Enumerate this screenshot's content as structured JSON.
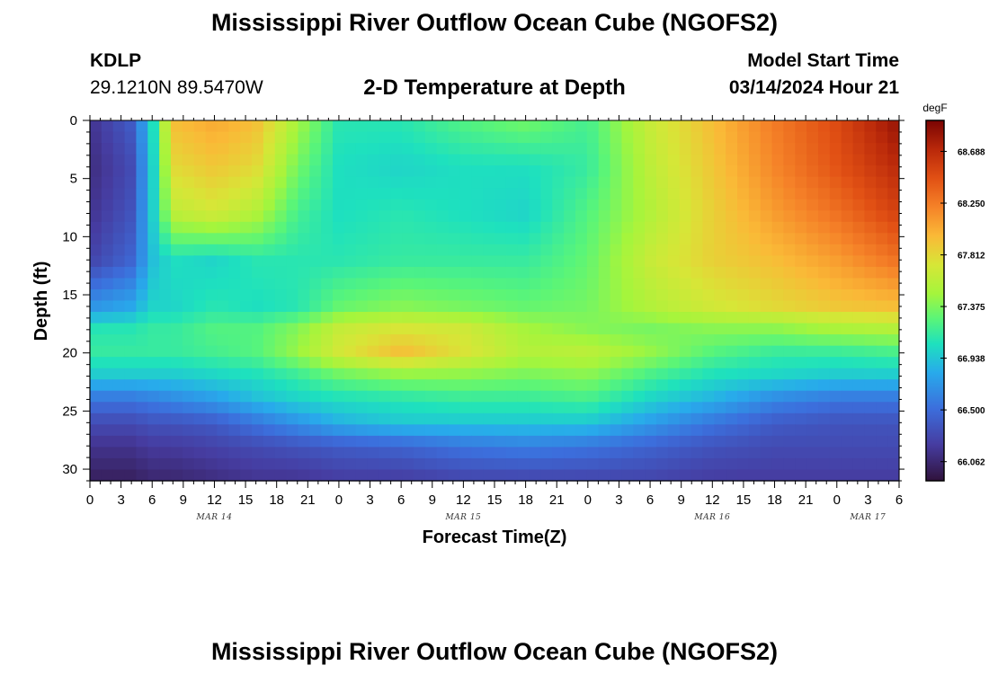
{
  "header": {
    "title": "Mississippi River Outflow Ocean Cube (NGOFS2)",
    "station_id": "KDLP",
    "station_coords": "29.1210N  89.5470W",
    "subtitle": "2-D Temperature at Depth",
    "model_start_label": "Model Start Time",
    "model_start_value": "03/14/2024 Hour 21"
  },
  "footer": {
    "title": "Mississippi River Outflow Ocean Cube (NGOFS2)"
  },
  "chart_data": {
    "type": "heatmap",
    "xlabel": "Forecast Time(Z)",
    "ylabel": "Depth (ft)",
    "x_tick_labels": [
      "0",
      "3",
      "6",
      "9",
      "12",
      "15",
      "18",
      "21",
      "0",
      "3",
      "6",
      "9",
      "12",
      "15",
      "18",
      "21",
      "0",
      "3",
      "6",
      "9",
      "12",
      "15",
      "18",
      "21",
      "0",
      "3",
      "6"
    ],
    "x_range_hours": [
      0,
      78
    ],
    "date_labels": [
      {
        "label": "MAR 14",
        "hour": 12
      },
      {
        "label": "MAR 15",
        "hour": 36
      },
      {
        "label": "MAR 16",
        "hour": 60
      },
      {
        "label": "MAR 17",
        "hour": 75
      }
    ],
    "y_ticks": [
      0,
      5,
      10,
      15,
      20,
      25,
      30
    ],
    "y_range_ft": [
      0,
      31
    ],
    "y_inverted": true,
    "colorbar": {
      "unit": "degF",
      "min": 65.9,
      "max": 68.95,
      "ticks": [
        66.062,
        66.5,
        66.938,
        67.375,
        67.812,
        68.25,
        68.688
      ],
      "tick_labels": [
        "66.062",
        "66.500",
        "66.938",
        "67.375",
        "67.812",
        "68.250",
        "68.688"
      ]
    },
    "depths_ft": [
      0,
      4,
      8,
      12,
      16,
      18,
      20,
      22,
      24,
      26,
      28,
      31
    ],
    "hours": [
      0,
      4,
      6,
      8,
      12,
      16,
      20,
      24,
      30,
      36,
      42,
      48,
      54,
      60,
      66,
      72,
      78
    ],
    "values": [
      [
        66.15,
        66.4,
        67.0,
        67.95,
        68.05,
        67.95,
        67.5,
        67.1,
        67.1,
        67.25,
        67.35,
        67.2,
        67.65,
        67.95,
        68.25,
        68.5,
        68.85
      ],
      [
        66.1,
        66.3,
        66.95,
        67.8,
        67.9,
        67.8,
        67.35,
        67.05,
        67.0,
        67.05,
        67.05,
        67.15,
        67.6,
        67.9,
        68.2,
        68.45,
        68.7
      ],
      [
        66.15,
        66.35,
        66.95,
        67.6,
        67.7,
        67.55,
        67.2,
        67.05,
        67.1,
        67.05,
        67.0,
        67.25,
        67.55,
        67.85,
        68.1,
        68.3,
        68.55
      ],
      [
        66.25,
        66.45,
        66.9,
        67.05,
        67.0,
        67.1,
        67.1,
        67.1,
        67.15,
        67.15,
        67.15,
        67.3,
        67.65,
        67.85,
        67.95,
        68.1,
        68.3
      ],
      [
        66.7,
        66.8,
        67.0,
        67.0,
        67.1,
        67.05,
        67.1,
        67.3,
        67.4,
        67.35,
        67.3,
        67.35,
        67.55,
        67.7,
        67.8,
        67.9,
        67.95
      ],
      [
        67.1,
        67.1,
        67.15,
        67.15,
        67.25,
        67.25,
        67.4,
        67.65,
        67.75,
        67.7,
        67.5,
        67.4,
        67.35,
        67.4,
        67.4,
        67.5,
        67.55
      ],
      [
        67.15,
        67.15,
        67.15,
        67.15,
        67.2,
        67.25,
        67.45,
        67.7,
        67.95,
        67.75,
        67.55,
        67.6,
        67.45,
        67.25,
        67.15,
        67.15,
        67.2
      ],
      [
        66.95,
        66.95,
        66.95,
        66.95,
        67.0,
        67.05,
        67.15,
        67.3,
        67.4,
        67.4,
        67.35,
        67.4,
        67.2,
        67.05,
        67.0,
        66.95,
        66.95
      ],
      [
        66.55,
        66.55,
        66.6,
        66.65,
        66.75,
        66.9,
        67.0,
        67.05,
        67.1,
        67.15,
        67.15,
        67.2,
        67.0,
        66.85,
        66.65,
        66.55,
        66.55
      ],
      [
        66.3,
        66.3,
        66.35,
        66.35,
        66.4,
        66.55,
        66.7,
        66.85,
        66.95,
        66.95,
        66.95,
        66.95,
        66.75,
        66.55,
        66.4,
        66.35,
        66.35
      ],
      [
        66.15,
        66.15,
        66.2,
        66.2,
        66.25,
        66.3,
        66.35,
        66.4,
        66.45,
        66.55,
        66.6,
        66.55,
        66.45,
        66.35,
        66.3,
        66.3,
        66.3
      ],
      [
        66.0,
        66.0,
        66.05,
        66.05,
        66.1,
        66.15,
        66.15,
        66.2,
        66.2,
        66.25,
        66.25,
        66.25,
        66.25,
        66.2,
        66.2,
        66.2,
        66.2
      ]
    ]
  }
}
